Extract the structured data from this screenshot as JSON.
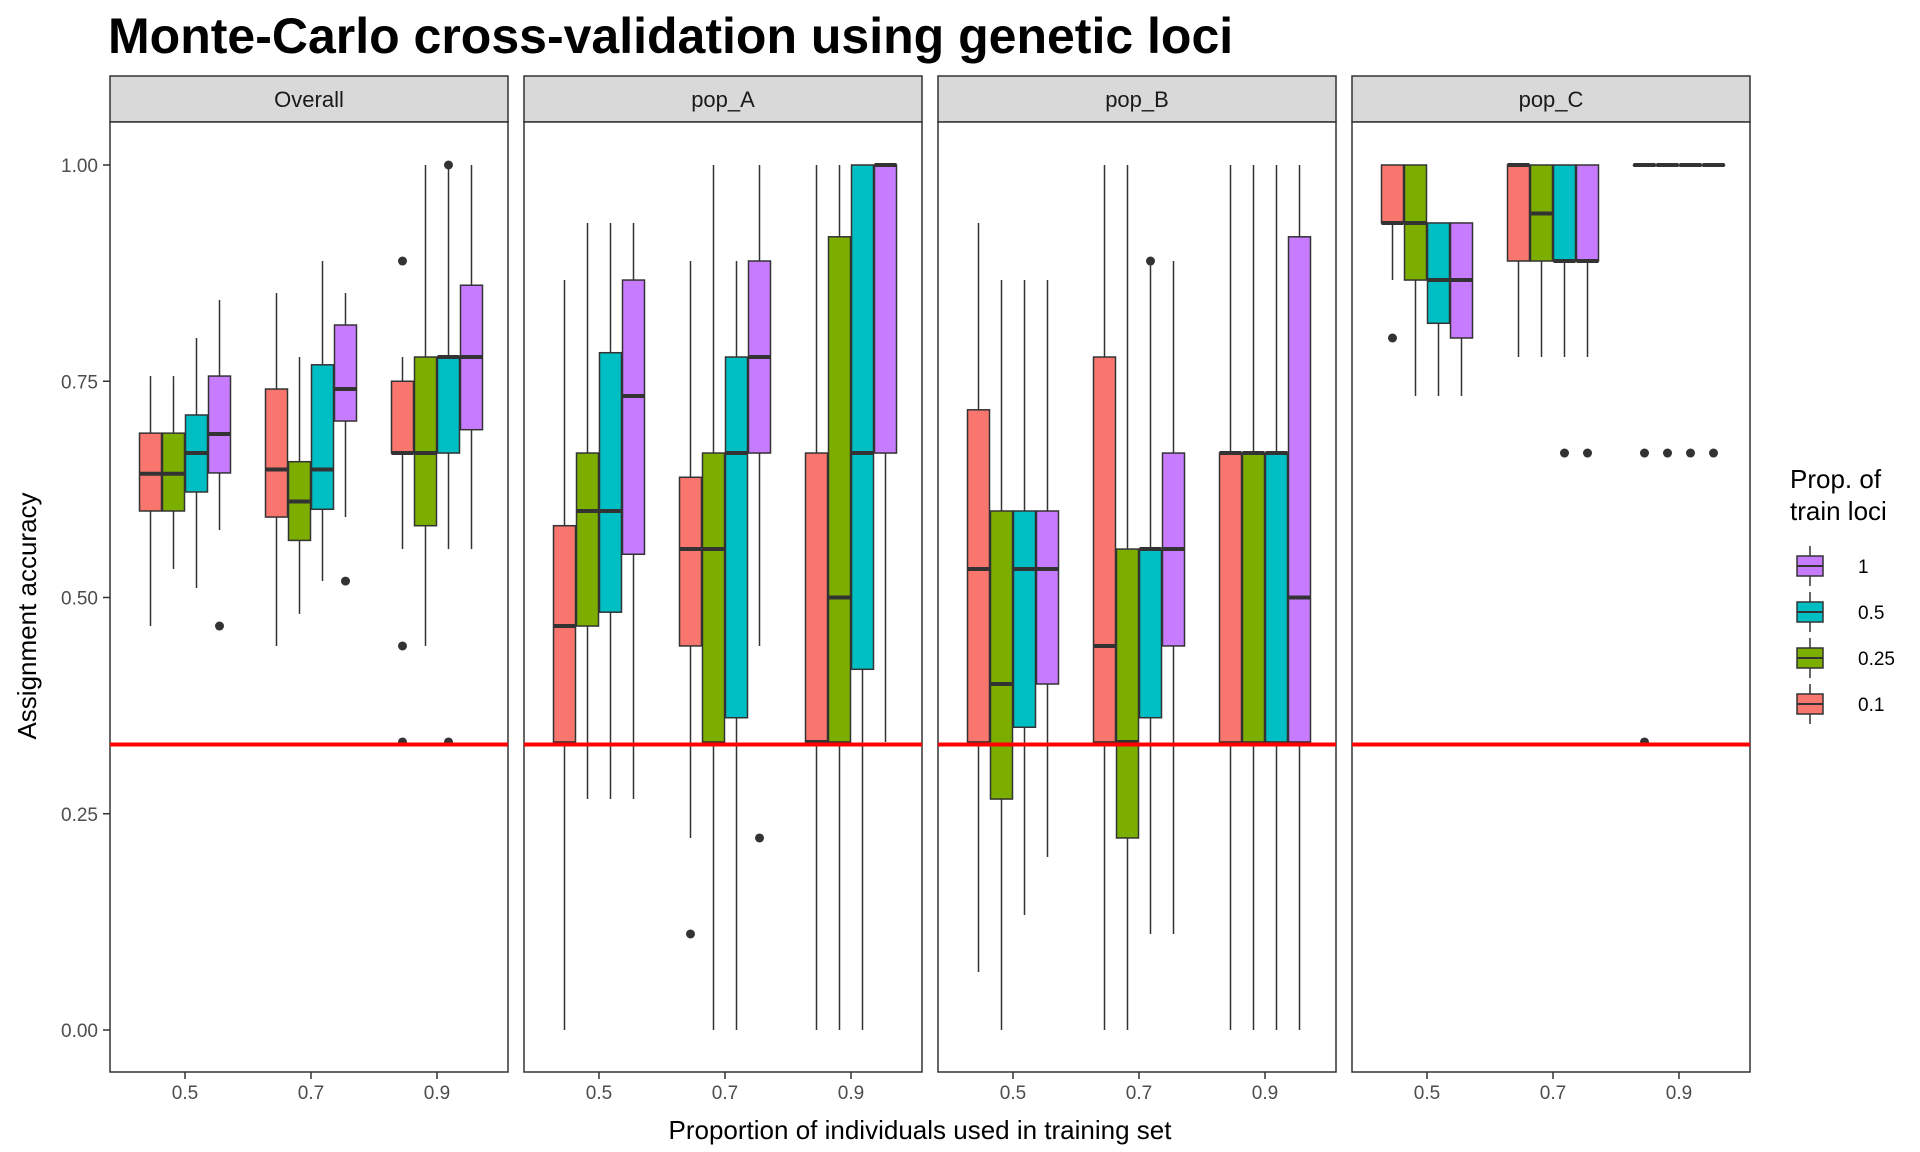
{
  "chart_data": {
    "type": "boxplot",
    "title": "Monte-Carlo cross-validation using genetic loci",
    "xlabel": "Proportion of individuals used in training set",
    "ylabel": "Assignment accuracy",
    "ylim": [
      -0.05,
      1.05
    ],
    "yticks": [
      "0.00",
      "0.25",
      "0.50",
      "0.75",
      "1.00"
    ],
    "ytick_values": [
      0,
      0.25,
      0.5,
      0.75,
      1.0
    ],
    "categories": [
      "0.5",
      "0.7",
      "0.9"
    ],
    "reference_line": {
      "y": 0.33,
      "color": "#ff0000"
    },
    "legend": {
      "title": [
        "Prop. of",
        "train loci"
      ],
      "position": "right",
      "entries": [
        {
          "label": "1",
          "color": "#c77cff"
        },
        {
          "label": "0.5",
          "color": "#00bfc4"
        },
        {
          "label": "0.25",
          "color": "#7cae00"
        },
        {
          "label": "0.1",
          "color": "#f8766d"
        }
      ]
    },
    "series_names": [
      "0.1",
      "0.25",
      "0.5",
      "1"
    ],
    "series_colors": [
      "#f8766d",
      "#7cae00",
      "#00bfc4",
      "#c77cff"
    ],
    "panels": [
      {
        "name": "Overall",
        "groups": [
          {
            "x": "0.5",
            "boxes": [
              {
                "q1": 0.6,
                "median": 0.643,
                "q3": 0.69,
                "low": 0.467,
                "high": 0.756,
                "outliers": []
              },
              {
                "q1": 0.6,
                "median": 0.643,
                "q3": 0.69,
                "low": 0.533,
                "high": 0.756,
                "outliers": []
              },
              {
                "q1": 0.622,
                "median": 0.667,
                "q3": 0.711,
                "low": 0.511,
                "high": 0.8,
                "outliers": []
              },
              {
                "q1": 0.644,
                "median": 0.689,
                "q3": 0.756,
                "low": 0.578,
                "high": 0.844,
                "outliers": [
                  0.467
                ]
              }
            ]
          },
          {
            "x": "0.7",
            "boxes": [
              {
                "q1": 0.593,
                "median": 0.648,
                "q3": 0.741,
                "low": 0.444,
                "high": 0.852,
                "outliers": []
              },
              {
                "q1": 0.566,
                "median": 0.611,
                "q3": 0.657,
                "low": 0.481,
                "high": 0.778,
                "outliers": []
              },
              {
                "q1": 0.602,
                "median": 0.648,
                "q3": 0.769,
                "low": 0.519,
                "high": 0.889,
                "outliers": []
              },
              {
                "q1": 0.704,
                "median": 0.741,
                "q3": 0.815,
                "low": 0.593,
                "high": 0.852,
                "outliers": [
                  0.519
                ]
              }
            ]
          },
          {
            "x": "0.9",
            "boxes": [
              {
                "q1": 0.667,
                "median": 0.667,
                "q3": 0.75,
                "low": 0.556,
                "high": 0.778,
                "outliers": [
                  0.889,
                  0.444,
                  0.333
                ]
              },
              {
                "q1": 0.583,
                "median": 0.667,
                "q3": 0.778,
                "low": 0.444,
                "high": 1.0,
                "outliers": []
              },
              {
                "q1": 0.667,
                "median": 0.778,
                "q3": 0.778,
                "low": 0.556,
                "high": 1.0,
                "outliers": [
                  1.0,
                  0.333
                ]
              },
              {
                "q1": 0.694,
                "median": 0.778,
                "q3": 0.861,
                "low": 0.556,
                "high": 1.0,
                "outliers": []
              }
            ]
          }
        ]
      },
      {
        "name": "pop_A",
        "groups": [
          {
            "x": "0.5",
            "boxes": [
              {
                "q1": 0.333,
                "median": 0.467,
                "q3": 0.583,
                "low": 0.0,
                "high": 0.867,
                "outliers": []
              },
              {
                "q1": 0.467,
                "median": 0.6,
                "q3": 0.667,
                "low": 0.267,
                "high": 0.933,
                "outliers": []
              },
              {
                "q1": 0.483,
                "median": 0.6,
                "q3": 0.783,
                "low": 0.267,
                "high": 0.933,
                "outliers": []
              },
              {
                "q1": 0.55,
                "median": 0.733,
                "q3": 0.867,
                "low": 0.267,
                "high": 0.933,
                "outliers": []
              }
            ]
          },
          {
            "x": "0.7",
            "boxes": [
              {
                "q1": 0.444,
                "median": 0.556,
                "q3": 0.639,
                "low": 0.222,
                "high": 0.889,
                "outliers": [
                  0.111
                ]
              },
              {
                "q1": 0.333,
                "median": 0.556,
                "q3": 0.667,
                "low": 0.0,
                "high": 1.0,
                "outliers": []
              },
              {
                "q1": 0.361,
                "median": 0.667,
                "q3": 0.778,
                "low": 0.0,
                "high": 0.889,
                "outliers": []
              },
              {
                "q1": 0.667,
                "median": 0.778,
                "q3": 0.889,
                "low": 0.444,
                "high": 1.0,
                "outliers": [
                  0.222
                ]
              }
            ]
          },
          {
            "x": "0.9",
            "boxes": [
              {
                "q1": 0.333,
                "median": 0.333,
                "q3": 0.667,
                "low": 0.0,
                "high": 1.0,
                "outliers": []
              },
              {
                "q1": 0.333,
                "median": 0.5,
                "q3": 0.917,
                "low": 0.0,
                "high": 1.0,
                "outliers": []
              },
              {
                "q1": 0.417,
                "median": 0.667,
                "q3": 1.0,
                "low": 0.0,
                "high": 1.0,
                "outliers": []
              },
              {
                "q1": 0.667,
                "median": 1.0,
                "q3": 1.0,
                "low": 0.333,
                "high": 1.0,
                "outliers": []
              }
            ]
          }
        ]
      },
      {
        "name": "pop_B",
        "groups": [
          {
            "x": "0.5",
            "boxes": [
              {
                "q1": 0.333,
                "median": 0.533,
                "q3": 0.717,
                "low": 0.067,
                "high": 0.933,
                "outliers": []
              },
              {
                "q1": 0.267,
                "median": 0.4,
                "q3": 0.6,
                "low": 0.0,
                "high": 0.867,
                "outliers": []
              },
              {
                "q1": 0.35,
                "median": 0.533,
                "q3": 0.6,
                "low": 0.133,
                "high": 0.867,
                "outliers": []
              },
              {
                "q1": 0.4,
                "median": 0.533,
                "q3": 0.6,
                "low": 0.2,
                "high": 0.867,
                "outliers": []
              }
            ]
          },
          {
            "x": "0.7",
            "boxes": [
              {
                "q1": 0.333,
                "median": 0.444,
                "q3": 0.778,
                "low": 0.0,
                "high": 1.0,
                "outliers": []
              },
              {
                "q1": 0.222,
                "median": 0.333,
                "q3": 0.556,
                "low": 0.0,
                "high": 1.0,
                "outliers": []
              },
              {
                "q1": 0.361,
                "median": 0.556,
                "q3": 0.556,
                "low": 0.111,
                "high": 0.889,
                "outliers": [
                  0.889
                ]
              },
              {
                "q1": 0.444,
                "median": 0.556,
                "q3": 0.667,
                "low": 0.111,
                "high": 0.889,
                "outliers": []
              }
            ]
          },
          {
            "x": "0.9",
            "boxes": [
              {
                "q1": 0.333,
                "median": 0.667,
                "q3": 0.667,
                "low": 0.0,
                "high": 1.0,
                "outliers": []
              },
              {
                "q1": 0.333,
                "median": 0.667,
                "q3": 0.667,
                "low": 0.0,
                "high": 1.0,
                "outliers": []
              },
              {
                "q1": 0.333,
                "median": 0.667,
                "q3": 0.667,
                "low": 0.0,
                "high": 1.0,
                "outliers": []
              },
              {
                "q1": 0.333,
                "median": 0.5,
                "q3": 0.917,
                "low": 0.0,
                "high": 1.0,
                "outliers": []
              }
            ]
          }
        ]
      },
      {
        "name": "pop_C",
        "groups": [
          {
            "x": "0.5",
            "boxes": [
              {
                "q1": 0.933,
                "median": 0.933,
                "q3": 1.0,
                "low": 0.867,
                "high": 1.0,
                "outliers": [
                  0.8
                ]
              },
              {
                "q1": 0.867,
                "median": 0.933,
                "q3": 1.0,
                "low": 0.733,
                "high": 1.0,
                "outliers": []
              },
              {
                "q1": 0.817,
                "median": 0.867,
                "q3": 0.933,
                "low": 0.733,
                "high": 0.933,
                "outliers": []
              },
              {
                "q1": 0.8,
                "median": 0.867,
                "q3": 0.933,
                "low": 0.733,
                "high": 0.933,
                "outliers": []
              }
            ]
          },
          {
            "x": "0.7",
            "boxes": [
              {
                "q1": 0.889,
                "median": 1.0,
                "q3": 1.0,
                "low": 0.778,
                "high": 1.0,
                "outliers": []
              },
              {
                "q1": 0.889,
                "median": 0.944,
                "q3": 1.0,
                "low": 0.778,
                "high": 1.0,
                "outliers": []
              },
              {
                "q1": 0.889,
                "median": 0.889,
                "q3": 1.0,
                "low": 0.778,
                "high": 1.0,
                "outliers": [
                  0.667
                ]
              },
              {
                "q1": 0.889,
                "median": 0.889,
                "q3": 1.0,
                "low": 0.778,
                "high": 1.0,
                "outliers": [
                  0.667
                ]
              }
            ]
          },
          {
            "x": "0.9",
            "boxes": [
              {
                "q1": 1.0,
                "median": 1.0,
                "q3": 1.0,
                "low": 1.0,
                "high": 1.0,
                "outliers": [
                  0.667,
                  0.333
                ]
              },
              {
                "q1": 1.0,
                "median": 1.0,
                "q3": 1.0,
                "low": 1.0,
                "high": 1.0,
                "outliers": [
                  0.667
                ]
              },
              {
                "q1": 1.0,
                "median": 1.0,
                "q3": 1.0,
                "low": 1.0,
                "high": 1.0,
                "outliers": [
                  0.667
                ]
              },
              {
                "q1": 1.0,
                "median": 1.0,
                "q3": 1.0,
                "low": 1.0,
                "high": 1.0,
                "outliers": [
                  0.667
                ]
              }
            ]
          }
        ]
      }
    ]
  }
}
